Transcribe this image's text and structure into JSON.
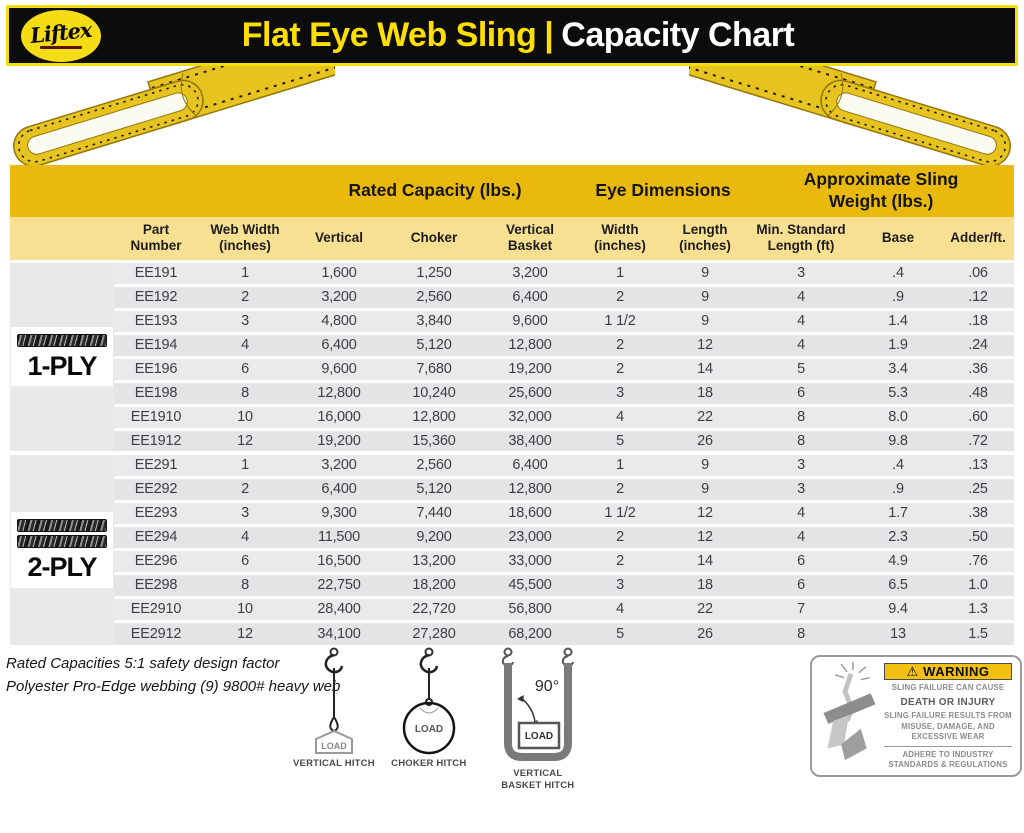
{
  "header": {
    "logo": {
      "brand": "Liftex"
    },
    "title": {
      "highlight": "Flat Eye Web Sling",
      "separator": "|",
      "rest": "Capacity Chart"
    }
  },
  "table": {
    "group_headers": [
      {
        "label": "Rated Capacity (lbs.)"
      },
      {
        "label": "Eye Dimensions"
      },
      {
        "label": "Approximate Sling\nWeight (lbs.)"
      }
    ],
    "columns": [
      "Part\nNumber",
      "Web Width\n(inches)",
      "Vertical",
      "Choker",
      "Vertical\nBasket",
      "Width\n(inches)",
      "Length\n(inches)",
      "Min. Standard\nLength (ft)",
      "Base",
      "Adder/ft."
    ],
    "sections": [
      {
        "ply_label": "1-PLY",
        "ply_strips": 1,
        "rows": [
          [
            "EE191",
            "1",
            "1,600",
            "1,250",
            "3,200",
            "1",
            "9",
            "3",
            ".4",
            ".06"
          ],
          [
            "EE192",
            "2",
            "3,200",
            "2,560",
            "6,400",
            "2",
            "9",
            "4",
            ".9",
            ".12"
          ],
          [
            "EE193",
            "3",
            "4,800",
            "3,840",
            "9,600",
            "1 1/2",
            "9",
            "4",
            "1.4",
            ".18"
          ],
          [
            "EE194",
            "4",
            "6,400",
            "5,120",
            "12,800",
            "2",
            "12",
            "4",
            "1.9",
            ".24"
          ],
          [
            "EE196",
            "6",
            "9,600",
            "7,680",
            "19,200",
            "2",
            "14",
            "5",
            "3.4",
            ".36"
          ],
          [
            "EE198",
            "8",
            "12,800",
            "10,240",
            "25,600",
            "3",
            "18",
            "6",
            "5.3",
            ".48"
          ],
          [
            "EE1910",
            "10",
            "16,000",
            "12,800",
            "32,000",
            "4",
            "22",
            "8",
            "8.0",
            ".60"
          ],
          [
            "EE1912",
            "12",
            "19,200",
            "15,360",
            "38,400",
            "5",
            "26",
            "8",
            "9.8",
            ".72"
          ]
        ]
      },
      {
        "ply_label": "2-PLY",
        "ply_strips": 2,
        "rows": [
          [
            "EE291",
            "1",
            "3,200",
            "2,560",
            "6,400",
            "1",
            "9",
            "3",
            ".4",
            ".13"
          ],
          [
            "EE292",
            "2",
            "6,400",
            "5,120",
            "12,800",
            "2",
            "9",
            "3",
            ".9",
            ".25"
          ],
          [
            "EE293",
            "3",
            "9,300",
            "7,440",
            "18,600",
            "1 1/2",
            "12",
            "4",
            "1.7",
            ".38"
          ],
          [
            "EE294",
            "4",
            "11,500",
            "9,200",
            "23,000",
            "2",
            "12",
            "4",
            "2.3",
            ".50"
          ],
          [
            "EE296",
            "6",
            "16,500",
            "13,200",
            "33,000",
            "2",
            "14",
            "6",
            "4.9",
            ".76"
          ],
          [
            "EE298",
            "8",
            "22,750",
            "18,200",
            "45,500",
            "3",
            "18",
            "6",
            "6.5",
            "1.0"
          ],
          [
            "EE2910",
            "10",
            "28,400",
            "22,720",
            "56,800",
            "4",
            "22",
            "7",
            "9.4",
            "1.3"
          ],
          [
            "EE2912",
            "12",
            "34,100",
            "27,280",
            "68,200",
            "5",
            "26",
            "8",
            "13",
            "1.5"
          ]
        ]
      }
    ]
  },
  "footnotes": {
    "line1": "Rated Capacities 5:1 safety design factor",
    "line2": "Polyester Pro-Edge webbing (9) 9800# heavy web"
  },
  "hitches": [
    {
      "label": "VERTICAL HITCH",
      "load_label": "LOAD"
    },
    {
      "label": "CHOKER HITCH",
      "load_label": "LOAD"
    },
    {
      "label": "VERTICAL BASKET HITCH",
      "load_label": "LOAD",
      "angle_label": "90°"
    }
  ],
  "warning": {
    "banner": "WARNING",
    "line1": "SLING FAILURE CAN CAUSE",
    "line2": "DEATH OR INJURY",
    "line3": "SLING FAILURE RESULTS FROM MISUSE, DAMAGE, AND EXCESSIVE WEAR",
    "line4": "ADHERE TO INDUSTRY STANDARDS & REGULATIONS"
  },
  "colors": {
    "banner_bg": "#0c0c0c",
    "banner_border": "#f2de06",
    "title_highlight": "#ffdf00",
    "title_rest": "#ffffff",
    "gold_header": "#e9b90e",
    "light_yellow_header": "#f8e092",
    "row_gray": "#eaeaec",
    "row_gray_alt": "#e4e4e7",
    "warning_banner": "#f2c011",
    "sling_yellow": "#e6c31f"
  }
}
